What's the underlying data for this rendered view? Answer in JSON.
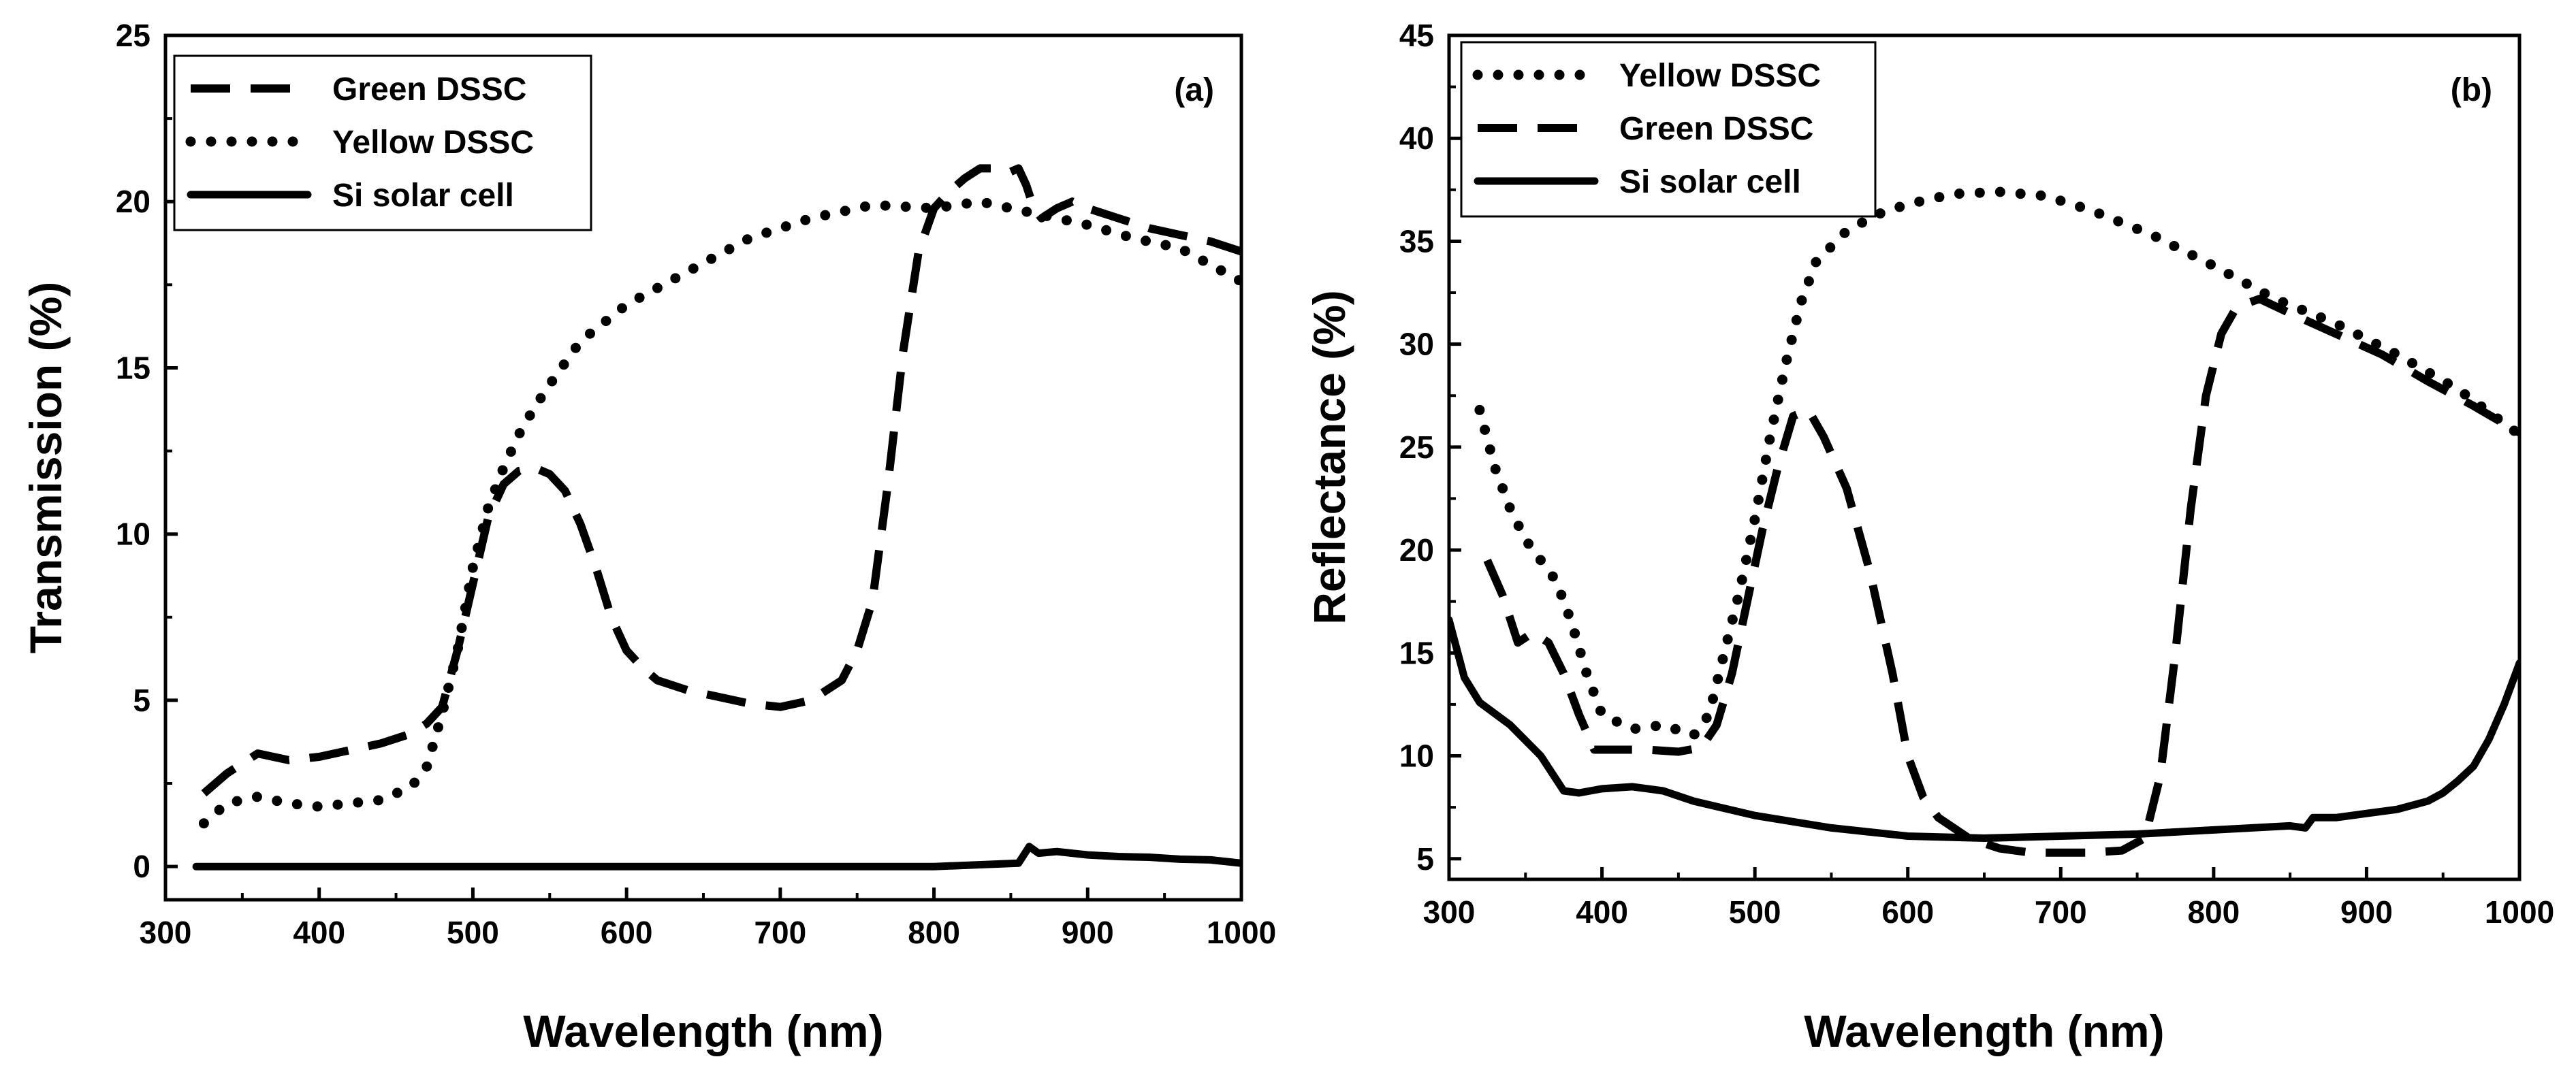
{
  "chart_data": [
    {
      "type": "line",
      "panel_label": "(a)",
      "xlabel": "Wavelength (nm)",
      "ylabel": "Transmission (%)",
      "xlim": [
        300,
        1000
      ],
      "ylim": [
        -1,
        25
      ],
      "xticks": [
        300,
        400,
        500,
        600,
        700,
        800,
        900,
        1000
      ],
      "yticks": [
        0,
        5,
        10,
        15,
        20,
        25
      ],
      "legend_position": "top-left",
      "series": [
        {
          "name": "Green DSSC",
          "style": "dashed",
          "x": [
            325,
            340,
            360,
            380,
            400,
            420,
            440,
            460,
            470,
            480,
            490,
            500,
            510,
            520,
            530,
            540,
            550,
            560,
            570,
            580,
            590,
            600,
            610,
            620,
            640,
            660,
            680,
            700,
            720,
            740,
            750,
            760,
            770,
            780,
            790,
            800,
            810,
            820,
            830,
            840,
            850,
            855,
            860,
            865,
            870,
            880,
            890,
            900,
            920,
            940,
            960,
            980,
            1000
          ],
          "y": [
            2.2,
            2.8,
            3.4,
            3.2,
            3.3,
            3.5,
            3.7,
            4.0,
            4.3,
            4.8,
            6.5,
            8.5,
            10.5,
            11.5,
            11.9,
            12.0,
            11.8,
            11.3,
            10.3,
            9.0,
            7.5,
            6.5,
            6.0,
            5.6,
            5.3,
            5.1,
            4.9,
            4.8,
            5.0,
            5.6,
            6.5,
            8.0,
            11.5,
            15.5,
            18.5,
            19.8,
            20.3,
            20.7,
            21.0,
            21.0,
            20.9,
            21.0,
            20.5,
            19.8,
            19.5,
            19.8,
            20.0,
            19.8,
            19.5,
            19.2,
            19.0,
            18.8,
            18.5
          ]
        },
        {
          "name": "Yellow DSSC",
          "style": "dotted",
          "x": [
            325,
            340,
            360,
            380,
            400,
            420,
            440,
            460,
            470,
            480,
            490,
            500,
            510,
            520,
            530,
            540,
            550,
            570,
            600,
            640,
            680,
            720,
            760,
            800,
            830,
            850,
            870,
            900,
            930,
            960,
            1000
          ],
          "y": [
            1.3,
            1.9,
            2.1,
            1.9,
            1.8,
            1.9,
            2.0,
            2.4,
            3.0,
            4.6,
            6.5,
            9.0,
            10.8,
            12.0,
            13.0,
            13.8,
            14.5,
            15.8,
            16.9,
            17.9,
            18.9,
            19.5,
            19.9,
            19.8,
            20.0,
            19.8,
            19.6,
            19.3,
            18.9,
            18.6,
            17.6
          ]
        },
        {
          "name": "Si solar cell",
          "style": "solid",
          "x": [
            320,
            400,
            500,
            600,
            700,
            800,
            855,
            862,
            868,
            880,
            900,
            920,
            940,
            960,
            980,
            1000
          ],
          "y": [
            0.0,
            0.0,
            0.0,
            0.0,
            0.0,
            0.0,
            0.1,
            0.6,
            0.4,
            0.45,
            0.35,
            0.3,
            0.28,
            0.22,
            0.2,
            0.1
          ]
        }
      ]
    },
    {
      "type": "line",
      "panel_label": "(b)",
      "xlabel": "Wavelength (nm)",
      "ylabel": "Reflectance (%)",
      "xlim": [
        300,
        1000
      ],
      "ylim": [
        4,
        45
      ],
      "xticks": [
        300,
        400,
        500,
        600,
        700,
        800,
        900,
        1000
      ],
      "yticks": [
        5,
        10,
        15,
        20,
        25,
        30,
        35,
        40,
        45
      ],
      "legend_position": "top-left",
      "series": [
        {
          "name": "Yellow DSSC",
          "style": "dotted",
          "x": [
            320,
            330,
            340,
            350,
            360,
            370,
            380,
            390,
            400,
            420,
            440,
            460,
            470,
            480,
            490,
            500,
            510,
            520,
            530,
            540,
            560,
            580,
            600,
            630,
            660,
            690,
            720,
            760,
            800,
            840,
            880,
            920,
            960,
            1000
          ],
          "y": [
            26.8,
            24.0,
            22.0,
            20.5,
            19.5,
            18.5,
            16.5,
            14.0,
            12.0,
            11.3,
            11.5,
            11.0,
            12.0,
            15.0,
            18.0,
            21.5,
            25.5,
            29.0,
            32.0,
            34.0,
            35.5,
            36.3,
            36.8,
            37.3,
            37.4,
            37.2,
            36.5,
            35.3,
            33.8,
            32.2,
            31.0,
            29.5,
            27.8,
            25.6
          ]
        },
        {
          "name": "Green DSSC",
          "style": "dashed",
          "x": [
            325,
            335,
            345,
            355,
            365,
            375,
            385,
            395,
            410,
            430,
            450,
            465,
            475,
            485,
            495,
            505,
            515,
            525,
            535,
            545,
            560,
            575,
            590,
            600,
            610,
            620,
            640,
            660,
            680,
            700,
            720,
            740,
            755,
            765,
            775,
            785,
            795,
            805,
            815,
            830,
            850,
            880,
            910,
            940,
            970,
            1000
          ],
          "y": [
            19.5,
            17.8,
            15.5,
            16.0,
            15.5,
            14.0,
            12.0,
            10.3,
            10.3,
            10.3,
            10.2,
            10.4,
            11.5,
            14.0,
            17.5,
            21.0,
            24.0,
            26.5,
            26.8,
            25.5,
            23.0,
            19.0,
            14.0,
            10.0,
            8.0,
            7.0,
            6.0,
            5.5,
            5.3,
            5.3,
            5.3,
            5.4,
            6.0,
            9.0,
            15.0,
            22.0,
            27.5,
            30.5,
            31.8,
            32.2,
            31.5,
            30.5,
            29.5,
            28.2,
            27.0,
            25.7
          ]
        },
        {
          "name": "Si solar cell",
          "style": "solid",
          "x": [
            300,
            310,
            320,
            340,
            360,
            375,
            385,
            400,
            420,
            440,
            460,
            500,
            550,
            600,
            650,
            700,
            750,
            800,
            850,
            860,
            865,
            880,
            900,
            920,
            940,
            950,
            960,
            970,
            980,
            990,
            1000
          ],
          "y": [
            16.6,
            13.8,
            12.6,
            11.5,
            10.0,
            8.3,
            8.2,
            8.4,
            8.5,
            8.3,
            7.8,
            7.1,
            6.5,
            6.1,
            6.0,
            6.1,
            6.2,
            6.4,
            6.6,
            6.5,
            7.0,
            7.0,
            7.2,
            7.4,
            7.8,
            8.2,
            8.8,
            9.5,
            10.8,
            12.5,
            14.5
          ]
        }
      ]
    }
  ]
}
